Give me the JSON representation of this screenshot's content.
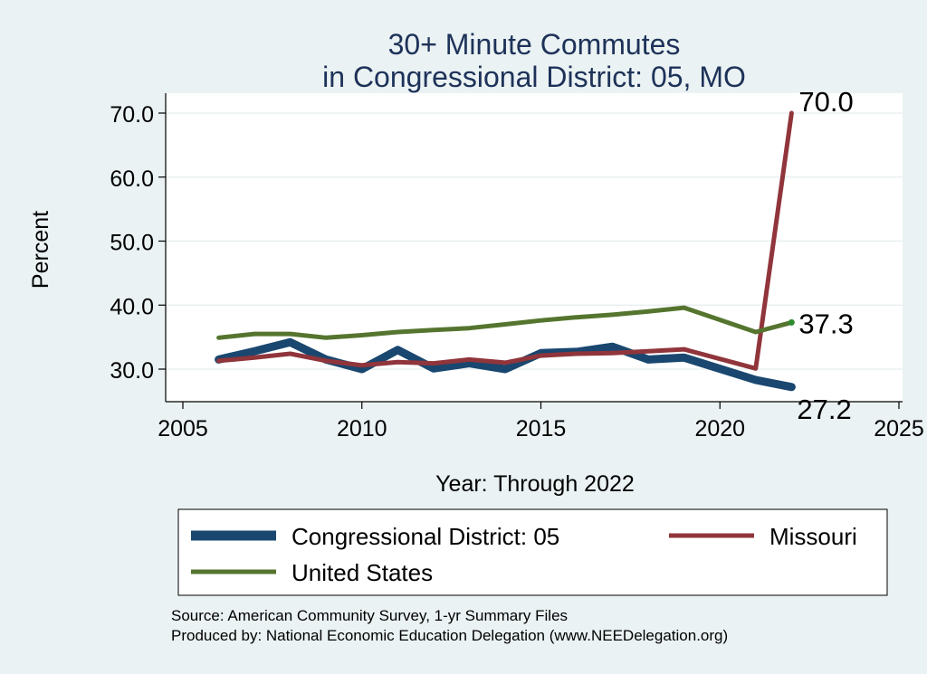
{
  "chart_data": {
    "type": "line",
    "title_line1": "30+ Minute Commutes",
    "title_line2": "in Congressional District:  05, MO",
    "xlabel": "Year: Through 2022",
    "ylabel": "Percent",
    "xlim": [
      2005,
      2025
    ],
    "ylim": [
      25.0,
      72.5
    ],
    "xticks": [
      "2005",
      "2010",
      "2015",
      "2020",
      "2025"
    ],
    "yticks": [
      "30.0",
      "40.0",
      "50.0",
      "60.0",
      "70.0"
    ],
    "grid": true,
    "x": [
      2006,
      2007,
      2008,
      2009,
      2010,
      2011,
      2012,
      2013,
      2014,
      2015,
      2016,
      2017,
      2018,
      2019,
      2021,
      2022
    ],
    "series": [
      {
        "name": "Congressional District:  05",
        "color": "#1a476f",
        "values": [
          31.5,
          32.8,
          34.2,
          31.5,
          30.0,
          33.0,
          30.1,
          30.9,
          30.0,
          32.5,
          32.7,
          33.5,
          31.5,
          31.8,
          28.3,
          27.2
        ],
        "end_label": "27.2"
      },
      {
        "name": "Missouri",
        "color": "#90353b",
        "values": [
          31.3,
          31.8,
          32.4,
          31.3,
          30.6,
          31.1,
          30.9,
          31.5,
          31.0,
          32.1,
          32.4,
          32.5,
          32.8,
          33.1,
          30.1,
          70.0
        ],
        "end_label": "70.0"
      },
      {
        "name": "United States",
        "color": "#55752f",
        "values": [
          34.9,
          35.5,
          35.5,
          34.9,
          35.3,
          35.8,
          36.1,
          36.4,
          37.0,
          37.6,
          38.1,
          38.5,
          39.0,
          39.6,
          35.8,
          37.3
        ],
        "end_label": "37.3"
      }
    ],
    "legend_position": "bottom",
    "source_line1": "Source: American Community Survey, 1-yr Summary Files",
    "source_line2": "Produced by: National Economic Education Delegation (www.NEEDelegation.org)"
  }
}
